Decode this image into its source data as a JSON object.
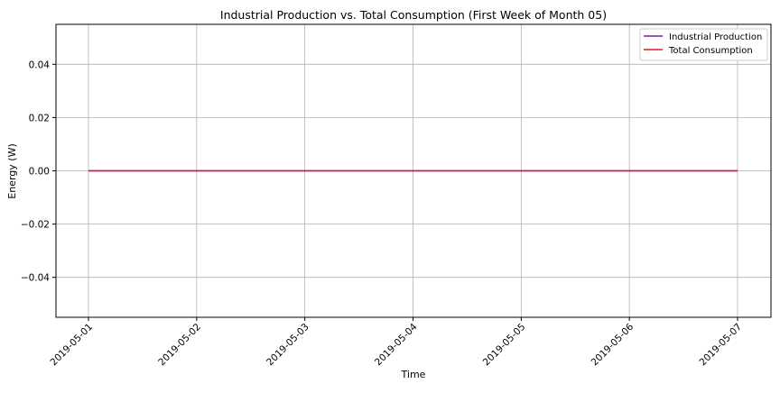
{
  "chart_data": {
    "type": "line",
    "title": "Industrial Production vs. Total Consumption (First Week of Month 05)",
    "xlabel": "Time",
    "ylabel": "Energy (W)",
    "x": [
      "2019-05-01",
      "2019-05-02",
      "2019-05-03",
      "2019-05-04",
      "2019-05-05",
      "2019-05-06",
      "2019-05-07"
    ],
    "series": [
      {
        "name": "Industrial Production",
        "color": "#7b1fa2",
        "values": [
          0,
          0,
          0,
          0,
          0,
          0,
          0
        ]
      },
      {
        "name": "Total Consumption",
        "color": "#e41a1c",
        "values": [
          0,
          0,
          0,
          0,
          0,
          0,
          0
        ]
      }
    ],
    "ylim": [
      -0.055,
      0.055
    ],
    "yticks": [
      "0.04",
      "0.02",
      "0.00",
      "−0.02",
      "−0.04"
    ],
    "ytick_values": [
      0.04,
      0.02,
      0.0,
      -0.02,
      -0.04
    ],
    "grid": true,
    "legend_position": "top-right"
  }
}
